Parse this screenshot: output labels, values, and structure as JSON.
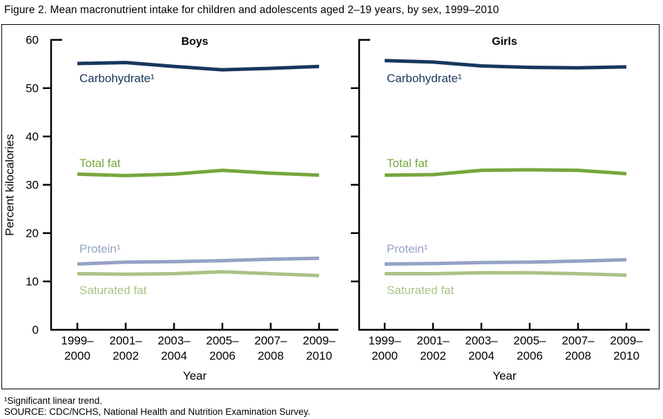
{
  "figure_title": "Figure 2. Mean macronutrient intake for children and adolescents aged 2–19 years, by sex, 1999–2010",
  "footnotes": {
    "trend": "¹Significant linear trend.",
    "source": "SOURCE: CDC/NCHS, National Health and Nutrition Examination Survey."
  },
  "chart_data": {
    "type": "line",
    "categories": [
      "1999–2000",
      "2001–2002",
      "2003–2004",
      "2005–2006",
      "2007–2008",
      "2009–2010"
    ],
    "xlabel": "Year",
    "ylabel": "Percent kilocalories",
    "ylim": [
      0,
      60
    ],
    "yticks": [
      0,
      10,
      20,
      30,
      40,
      50,
      60
    ],
    "grid": "off",
    "legend_position": "labels-on-lines",
    "panels": [
      {
        "title": "Boys",
        "series": [
          {
            "name": "Carbohydrate",
            "label": "Carbohydrate¹",
            "color": "#17375E",
            "values": [
              55.1,
              55.3,
              54.5,
              53.8,
              54.1,
              54.5
            ]
          },
          {
            "name": "Total fat",
            "label": "Total fat",
            "color": "#76A73D",
            "values": [
              32.2,
              31.9,
              32.2,
              33.0,
              32.4,
              32.0
            ]
          },
          {
            "name": "Protein",
            "label": "Protein¹",
            "color": "#95A2C7",
            "values": [
              13.6,
              14.0,
              14.1,
              14.3,
              14.6,
              14.8
            ]
          },
          {
            "name": "Saturated fat",
            "label": "Saturated fat",
            "color": "#A9C285",
            "values": [
              11.6,
              11.5,
              11.6,
              12.0,
              11.6,
              11.2
            ]
          }
        ]
      },
      {
        "title": "Girls",
        "series": [
          {
            "name": "Carbohydrate",
            "label": "Carbohydrate¹",
            "color": "#17375E",
            "values": [
              55.7,
              55.4,
              54.6,
              54.3,
              54.2,
              54.4
            ]
          },
          {
            "name": "Total fat",
            "label": "Total fat",
            "color": "#76A73D",
            "values": [
              32.0,
              32.1,
              33.0,
              33.1,
              33.0,
              32.3
            ]
          },
          {
            "name": "Protein",
            "label": "Protein¹",
            "color": "#95A2C7",
            "values": [
              13.6,
              13.7,
              13.9,
              14.0,
              14.2,
              14.5
            ]
          },
          {
            "name": "Saturated fat",
            "label": "Saturated fat",
            "color": "#A9C285",
            "values": [
              11.6,
              11.6,
              11.8,
              11.8,
              11.6,
              11.3
            ]
          }
        ]
      }
    ]
  }
}
